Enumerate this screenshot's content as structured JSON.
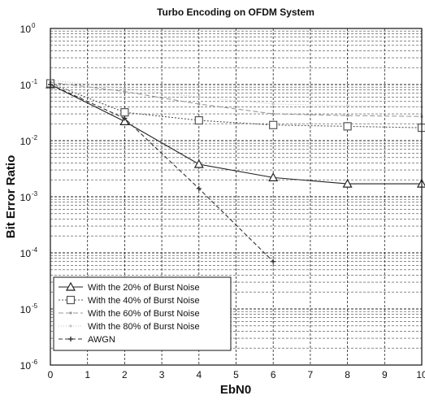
{
  "chart_data": {
    "type": "line",
    "title": "Turbo Encoding on OFDM System",
    "xlabel": "EbN0",
    "ylabel": "Bit Error Ratio",
    "xlim": [
      0,
      10
    ],
    "ylim": [
      1e-06,
      1
    ],
    "yscale": "log",
    "grid": true,
    "legend_position": "bottom-left",
    "x_ticks": [
      "0",
      "1",
      "2",
      "3",
      "4",
      "5",
      "6",
      "7",
      "8",
      "9",
      "10"
    ],
    "y_ticks": [
      {
        "base": "10",
        "exp": "-6",
        "value": 1e-06
      },
      {
        "base": "10",
        "exp": "-5",
        "value": 1e-05
      },
      {
        "base": "10",
        "exp": "-4",
        "value": 0.0001
      },
      {
        "base": "10",
        "exp": "-3",
        "value": 0.001
      },
      {
        "base": "10",
        "exp": "-2",
        "value": 0.01
      },
      {
        "base": "10",
        "exp": "-1",
        "value": 0.1
      },
      {
        "base": "10",
        "exp": "0",
        "value": 1
      }
    ],
    "series": [
      {
        "name": "With the 20% of Burst Noise",
        "marker": "triangle",
        "color": "#222222",
        "dash": "",
        "x": [
          0,
          2,
          4,
          6,
          8,
          10
        ],
        "y": [
          0.1,
          0.022,
          0.0038,
          0.0022,
          0.0017,
          0.0017
        ]
      },
      {
        "name": "With the 40% of Burst Noise",
        "marker": "square",
        "color": "#555555",
        "dash": "2,2",
        "x": [
          0,
          2,
          4,
          6,
          8,
          10
        ],
        "y": [
          0.105,
          0.032,
          0.023,
          0.019,
          0.018,
          0.017
        ]
      },
      {
        "name": "With the 60% of Burst Noise",
        "marker": "dot",
        "color": "#999999",
        "dash": "6,3",
        "x": [
          0,
          2,
          4,
          6,
          8,
          10
        ],
        "y": [
          0.11,
          0.075,
          0.045,
          0.03,
          0.028,
          0.027
        ]
      },
      {
        "name": "With the 80% of Burst Noise",
        "marker": "dot",
        "color": "#c4c4c4",
        "dash": "1,2",
        "x": [
          0,
          2,
          4,
          6,
          8,
          10
        ],
        "y": [
          0.12,
          0.085,
          0.06,
          0.045,
          0.042,
          0.04
        ]
      },
      {
        "name": "AWGN",
        "marker": "plus",
        "color": "#333333",
        "dash": "5,3",
        "x": [
          0,
          2,
          4,
          6
        ],
        "y": [
          0.1,
          0.025,
          0.0014,
          7e-05
        ]
      }
    ]
  }
}
